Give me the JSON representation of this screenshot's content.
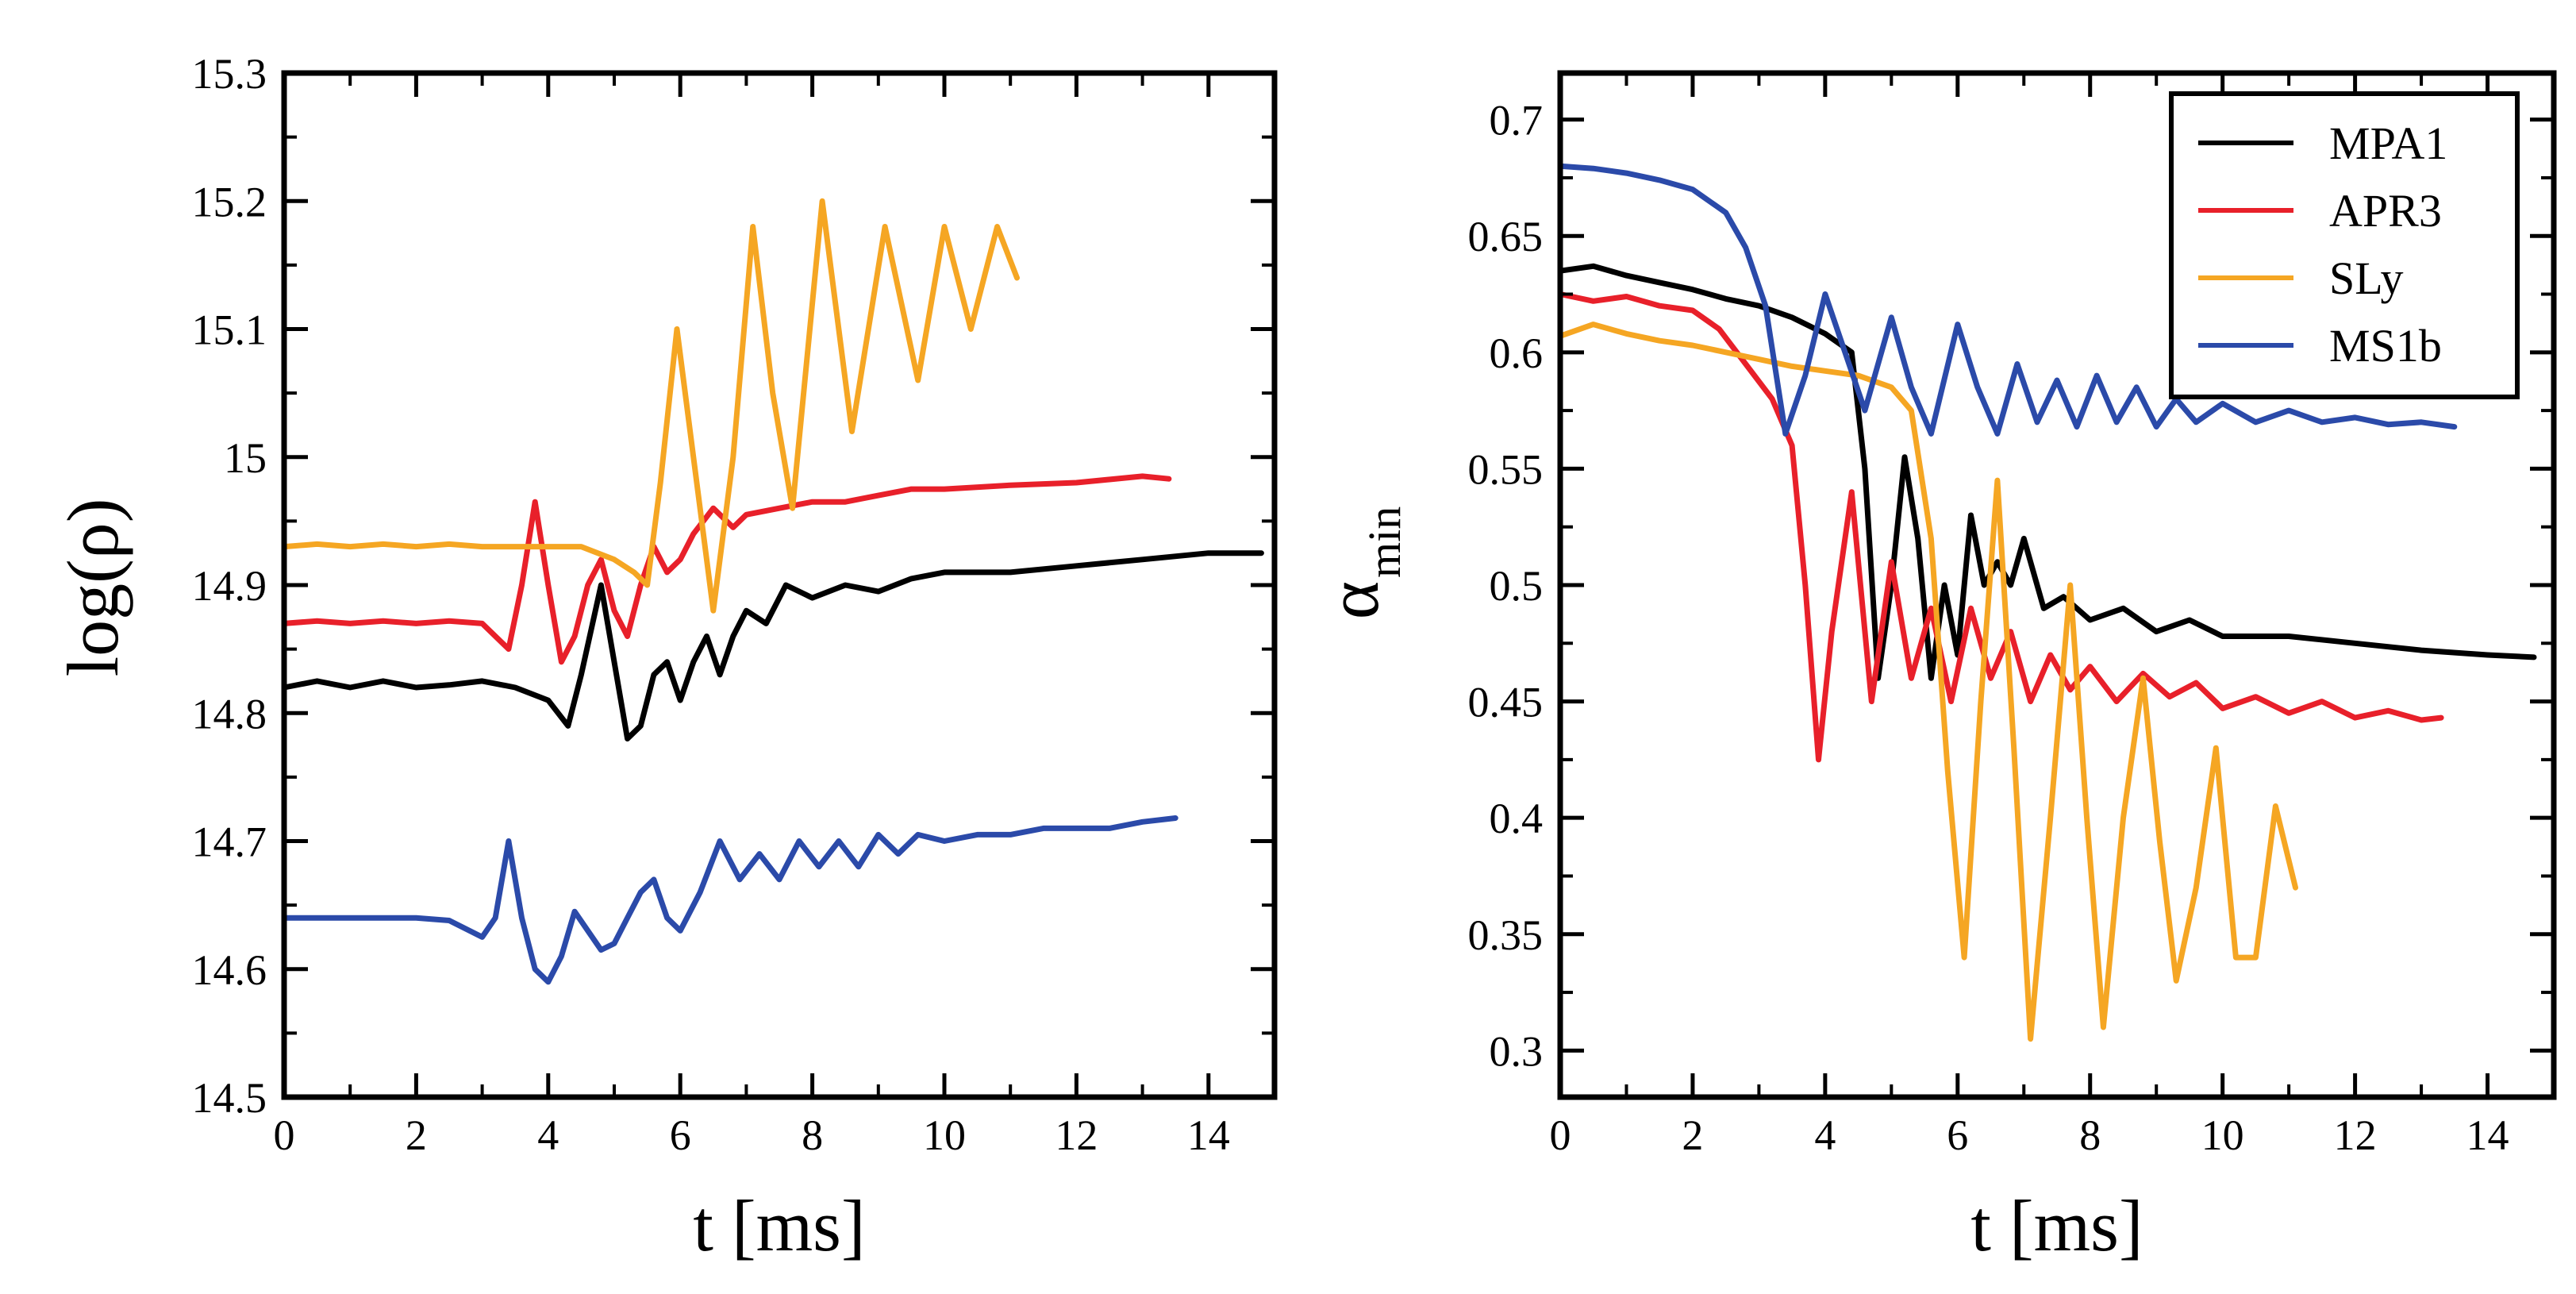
{
  "chart_data": [
    {
      "type": "line",
      "title": "",
      "xlabel": "t [ms]",
      "ylabel": "log(ρ)",
      "xlim": [
        0,
        15
      ],
      "ylim": [
        14.5,
        15.3
      ],
      "xticks": [
        "0",
        "2",
        "4",
        "6",
        "8",
        "10",
        "12",
        "14"
      ],
      "yticks": [
        "14.5",
        "14.6",
        "14.7",
        "14.8",
        "14.9",
        "15",
        "15.1",
        "15.2",
        "15.3"
      ],
      "series": [
        {
          "name": "MPA1",
          "color": "#000000",
          "x": [
            0,
            0.5,
            1,
            1.5,
            2,
            2.5,
            3,
            3.5,
            4,
            4.3,
            4.5,
            4.8,
            5,
            5.2,
            5.4,
            5.6,
            5.8,
            6,
            6.2,
            6.4,
            6.6,
            6.8,
            7,
            7.3,
            7.6,
            8,
            8.5,
            9,
            9.5,
            10,
            11,
            12,
            13,
            14,
            14.8
          ],
          "y": [
            14.82,
            14.825,
            14.82,
            14.825,
            14.82,
            14.822,
            14.825,
            14.82,
            14.81,
            14.79,
            14.83,
            14.9,
            14.84,
            14.78,
            14.79,
            14.83,
            14.84,
            14.81,
            14.84,
            14.86,
            14.83,
            14.86,
            14.88,
            14.87,
            14.9,
            14.89,
            14.9,
            14.895,
            14.905,
            14.91,
            14.91,
            14.915,
            14.92,
            14.925,
            14.925
          ]
        },
        {
          "name": "APR3",
          "color": "#e8202a",
          "x": [
            0,
            0.5,
            1,
            1.5,
            2,
            2.5,
            3,
            3.4,
            3.6,
            3.8,
            4,
            4.2,
            4.4,
            4.6,
            4.8,
            5,
            5.2,
            5.4,
            5.6,
            5.8,
            6,
            6.2,
            6.5,
            6.8,
            7,
            7.5,
            8,
            8.5,
            9,
            9.5,
            10,
            11,
            12,
            13,
            13.4
          ],
          "y": [
            14.87,
            14.872,
            14.87,
            14.872,
            14.87,
            14.872,
            14.87,
            14.85,
            14.9,
            14.965,
            14.9,
            14.84,
            14.86,
            14.9,
            14.92,
            14.88,
            14.86,
            14.9,
            14.93,
            14.91,
            14.92,
            14.94,
            14.96,
            14.945,
            14.955,
            14.96,
            14.965,
            14.965,
            14.97,
            14.975,
            14.975,
            14.978,
            14.98,
            14.985,
            14.983
          ]
        },
        {
          "name": "SLy",
          "color": "#f5a623",
          "x": [
            0,
            0.5,
            1,
            1.5,
            2,
            2.5,
            3,
            3.5,
            4,
            4.5,
            5,
            5.3,
            5.5,
            5.7,
            5.95,
            6.2,
            6.5,
            6.8,
            7.1,
            7.4,
            7.7,
            8.15,
            8.6,
            9.1,
            9.6,
            10,
            10.4,
            10.8,
            11.1
          ],
          "y": [
            14.93,
            14.932,
            14.93,
            14.932,
            14.93,
            14.932,
            14.93,
            14.93,
            14.93,
            14.93,
            14.92,
            14.91,
            14.9,
            14.98,
            15.1,
            15.0,
            14.88,
            15.0,
            15.18,
            15.05,
            14.96,
            15.2,
            15.02,
            15.18,
            15.06,
            15.18,
            15.1,
            15.18,
            15.14
          ]
        },
        {
          "name": "MS1b",
          "color": "#2b4aa9",
          "x": [
            0,
            0.5,
            1,
            1.5,
            2,
            2.5,
            3,
            3.2,
            3.4,
            3.6,
            3.8,
            4,
            4.2,
            4.4,
            4.6,
            4.8,
            5,
            5.2,
            5.4,
            5.6,
            5.8,
            6,
            6.3,
            6.6,
            6.9,
            7.2,
            7.5,
            7.8,
            8.1,
            8.4,
            8.7,
            9.0,
            9.3,
            9.6,
            10,
            10.5,
            11,
            11.5,
            12,
            12.5,
            13,
            13.5
          ],
          "y": [
            14.64,
            14.64,
            14.64,
            14.64,
            14.64,
            14.638,
            14.625,
            14.64,
            14.7,
            14.64,
            14.6,
            14.59,
            14.61,
            14.645,
            14.63,
            14.615,
            14.62,
            14.64,
            14.66,
            14.67,
            14.64,
            14.63,
            14.66,
            14.7,
            14.67,
            14.69,
            14.67,
            14.7,
            14.68,
            14.7,
            14.68,
            14.705,
            14.69,
            14.705,
            14.7,
            14.705,
            14.705,
            14.71,
            14.71,
            14.71,
            14.715,
            14.718
          ]
        }
      ]
    },
    {
      "type": "line",
      "title": "",
      "xlabel": "t [ms]",
      "ylabel": "α",
      "ylabel_subscript": "min",
      "xlim": [
        0,
        15
      ],
      "ylim": [
        0.28,
        0.72
      ],
      "xticks": [
        "0",
        "2",
        "4",
        "6",
        "8",
        "10",
        "12",
        "14"
      ],
      "yticks": [
        "0.3",
        "0.35",
        "0.4",
        "0.45",
        "0.5",
        "0.55",
        "0.6",
        "0.65",
        "0.7"
      ],
      "legend_position": "top-right",
      "series": [
        {
          "name": "MPA1",
          "color": "#000000",
          "x": [
            0,
            0.5,
            1,
            1.5,
            2,
            2.5,
            3,
            3.5,
            4,
            4.4,
            4.6,
            4.8,
            5.0,
            5.2,
            5.4,
            5.6,
            5.8,
            6.0,
            6.2,
            6.4,
            6.6,
            6.8,
            7.0,
            7.3,
            7.6,
            8,
            8.5,
            9,
            9.5,
            10,
            11,
            12,
            13,
            14,
            14.7
          ],
          "y": [
            0.635,
            0.637,
            0.633,
            0.63,
            0.627,
            0.623,
            0.62,
            0.615,
            0.608,
            0.6,
            0.55,
            0.46,
            0.5,
            0.555,
            0.52,
            0.46,
            0.5,
            0.47,
            0.53,
            0.5,
            0.51,
            0.5,
            0.52,
            0.49,
            0.495,
            0.485,
            0.49,
            0.48,
            0.485,
            0.478,
            0.478,
            0.475,
            0.472,
            0.47,
            0.469
          ]
        },
        {
          "name": "APR3",
          "color": "#e8202a",
          "x": [
            0,
            0.5,
            1,
            1.5,
            2,
            2.4,
            2.8,
            3.2,
            3.5,
            3.7,
            3.9,
            4.1,
            4.4,
            4.7,
            5.0,
            5.3,
            5.6,
            5.9,
            6.2,
            6.5,
            6.8,
            7.1,
            7.4,
            7.7,
            8,
            8.4,
            8.8,
            9.2,
            9.6,
            10,
            10.5,
            11,
            11.5,
            12,
            12.5,
            13,
            13.3
          ],
          "y": [
            0.625,
            0.622,
            0.624,
            0.62,
            0.618,
            0.61,
            0.595,
            0.58,
            0.56,
            0.5,
            0.425,
            0.48,
            0.54,
            0.45,
            0.51,
            0.46,
            0.49,
            0.45,
            0.49,
            0.46,
            0.48,
            0.45,
            0.47,
            0.455,
            0.465,
            0.45,
            0.462,
            0.452,
            0.458,
            0.447,
            0.452,
            0.445,
            0.45,
            0.443,
            0.446,
            0.442,
            0.443
          ]
        },
        {
          "name": "SLy",
          "color": "#f5a623",
          "x": [
            0,
            0.5,
            1,
            1.5,
            2,
            2.5,
            3,
            3.5,
            4,
            4.5,
            5,
            5.3,
            5.6,
            5.85,
            6.1,
            6.35,
            6.6,
            6.85,
            7.1,
            7.4,
            7.7,
            7.95,
            8.2,
            8.5,
            8.8,
            9.05,
            9.3,
            9.6,
            9.9,
            10.2,
            10.5,
            10.8,
            11.1
          ],
          "y": [
            0.607,
            0.612,
            0.608,
            0.605,
            0.603,
            0.6,
            0.597,
            0.594,
            0.592,
            0.59,
            0.585,
            0.575,
            0.52,
            0.42,
            0.34,
            0.45,
            0.545,
            0.43,
            0.305,
            0.4,
            0.5,
            0.4,
            0.31,
            0.4,
            0.46,
            0.39,
            0.33,
            0.37,
            0.43,
            0.34,
            0.34,
            0.405,
            0.37
          ]
        },
        {
          "name": "MS1b",
          "color": "#2b4aa9",
          "x": [
            0,
            0.5,
            1,
            1.5,
            2,
            2.5,
            2.8,
            3.1,
            3.4,
            3.7,
            4.0,
            4.3,
            4.6,
            5.0,
            5.3,
            5.6,
            6.0,
            6.3,
            6.6,
            6.9,
            7.2,
            7.5,
            7.8,
            8.1,
            8.4,
            8.7,
            9.0,
            9.3,
            9.6,
            10,
            10.5,
            11,
            11.5,
            12,
            12.5,
            13,
            13.5
          ],
          "y": [
            0.68,
            0.679,
            0.677,
            0.674,
            0.67,
            0.66,
            0.645,
            0.62,
            0.565,
            0.59,
            0.625,
            0.6,
            0.575,
            0.615,
            0.585,
            0.565,
            0.612,
            0.585,
            0.565,
            0.595,
            0.57,
            0.588,
            0.568,
            0.59,
            0.57,
            0.585,
            0.568,
            0.58,
            0.57,
            0.578,
            0.57,
            0.575,
            0.57,
            0.572,
            0.569,
            0.57,
            0.568
          ]
        }
      ]
    }
  ]
}
